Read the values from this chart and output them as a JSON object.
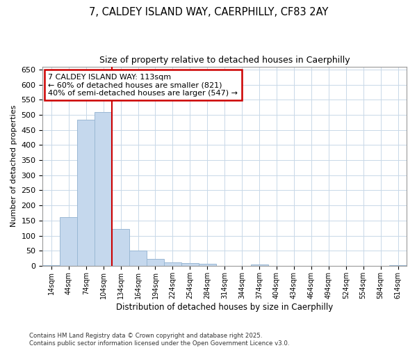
{
  "title_line1": "7, CALDEY ISLAND WAY, CAERPHILLY, CF83 2AY",
  "title_line2": "Size of property relative to detached houses in Caerphilly",
  "xlabel": "Distribution of detached houses by size in Caerphilly",
  "ylabel": "Number of detached properties",
  "footer_line1": "Contains HM Land Registry data © Crown copyright and database right 2025.",
  "footer_line2": "Contains public sector information licensed under the Open Government Licence v3.0.",
  "bins": [
    "14sqm",
    "44sqm",
    "74sqm",
    "104sqm",
    "134sqm",
    "164sqm",
    "194sqm",
    "224sqm",
    "254sqm",
    "284sqm",
    "314sqm",
    "344sqm",
    "374sqm",
    "404sqm",
    "434sqm",
    "464sqm",
    "494sqm",
    "524sqm",
    "554sqm",
    "584sqm",
    "614sqm"
  ],
  "values": [
    2,
    161,
    483,
    510,
    122,
    50,
    22,
    12,
    10,
    7,
    0,
    0,
    5,
    0,
    0,
    0,
    0,
    0,
    0,
    0,
    2
  ],
  "bar_color": "#c5d8ed",
  "bar_edge_color": "#9ab8d4",
  "grid_color": "#c8d8e8",
  "bg_color": "#ffffff",
  "plot_bg_color": "#ffffff",
  "annotation_box_edge_color": "#cc0000",
  "vline_color": "#cc0000",
  "vline_x": 3.5,
  "annotation_text": "7 CALDEY ISLAND WAY: 113sqm\n← 60% of detached houses are smaller (821)\n40% of semi-detached houses are larger (547) →",
  "ylim": [
    0,
    660
  ],
  "yticks": [
    0,
    50,
    100,
    150,
    200,
    250,
    300,
    350,
    400,
    450,
    500,
    550,
    600,
    650
  ]
}
